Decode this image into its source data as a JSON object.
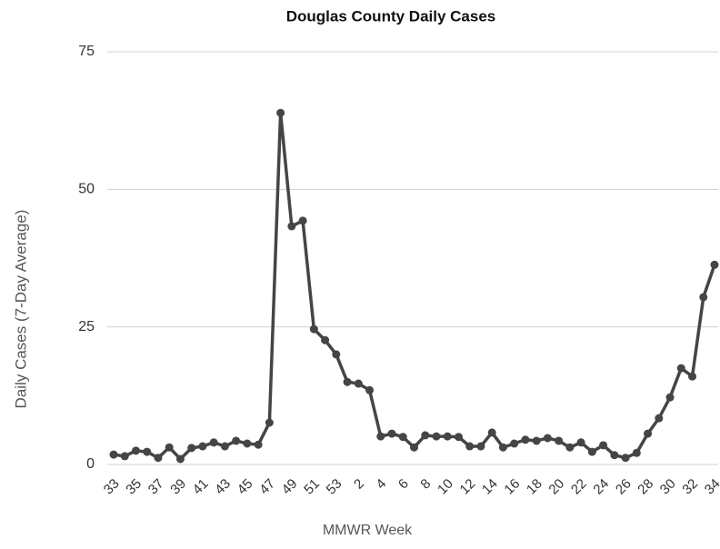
{
  "chart_data": {
    "type": "line",
    "title": "Douglas County Daily Cases",
    "x_label": "MMWR Week",
    "y_label": "Daily Cases (7-Day Average)",
    "categories": [
      "33",
      null,
      "35",
      null,
      "37",
      null,
      "39",
      null,
      "41",
      null,
      "43",
      null,
      "45",
      null,
      "47",
      null,
      "49",
      null,
      "51",
      null,
      "53",
      null,
      "2",
      null,
      "4",
      null,
      "6",
      null,
      "8",
      null,
      "10",
      null,
      "12",
      null,
      "14",
      null,
      "16",
      null,
      "18",
      null,
      "20",
      null,
      "22",
      null,
      "24",
      null,
      "26",
      null,
      "28",
      null,
      "30",
      null,
      "32",
      null,
      "34"
    ],
    "series": [
      {
        "name": "Daily Cases",
        "color": "#454545",
        "values": [
          1.8,
          1.5,
          2.5,
          2.3,
          1.2,
          3.1,
          1.0,
          3.0,
          3.3,
          4.0,
          3.3,
          4.3,
          3.8,
          3.6,
          7.6,
          63.9,
          43.3,
          44.3,
          24.6,
          22.6,
          20.0,
          15.0,
          14.7,
          13.5,
          5.1,
          5.6,
          5.0,
          3.1,
          5.3,
          5.1,
          5.1,
          5.0,
          3.3,
          3.3,
          5.8,
          3.1,
          3.8,
          4.5,
          4.3,
          4.8,
          4.3,
          3.1,
          4.0,
          2.3,
          3.5,
          1.7,
          1.2,
          2.1,
          5.6,
          8.4,
          12.2,
          17.5,
          16.0,
          30.4,
          36.3
        ]
      }
    ],
    "ylim": [
      0,
      75
    ],
    "yticks": [
      0,
      25,
      50,
      75
    ],
    "grid": true
  }
}
